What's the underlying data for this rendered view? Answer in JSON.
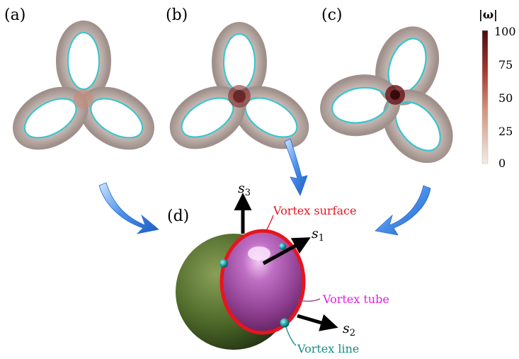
{
  "panels": {
    "a": "(a)",
    "b": "(b)",
    "c": "(c)",
    "d": "(d)"
  },
  "colorbar": {
    "title": "|ω|",
    "ticks": [
      "100",
      "75",
      "50",
      "25",
      "0"
    ],
    "colors": [
      "#4a0a12",
      "#a3382d",
      "#d2957c",
      "#f2ece7"
    ]
  },
  "axes": {
    "s1": {
      "base": "s",
      "sub": "1"
    },
    "s2": {
      "base": "s",
      "sub": "2"
    },
    "s3": {
      "base": "s",
      "sub": "3"
    }
  },
  "annotations": {
    "vortex_surface": "Vortex surface",
    "vortex_tube": "Vortex tube",
    "vortex_line": "Vortex line"
  },
  "colors": {
    "surface_red": "#e8141e",
    "tube_magenta": "#e81ae8",
    "line_teal": "#1a8a8a",
    "knot_line_cyan": "#35c7cf",
    "arrow_blue": "#2f7fe0",
    "sphere_green": "#4e6a2a",
    "tube_purple": "#8c3c8c"
  }
}
